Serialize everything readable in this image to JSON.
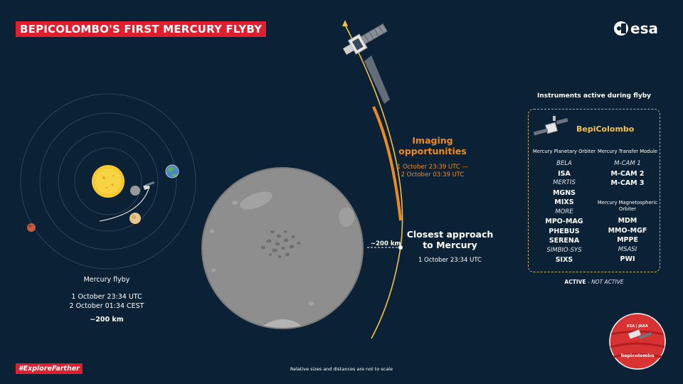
{
  "title": "BEPICOLOMBO'S FIRST MERCURY FLYBY",
  "logo": {
    "text": "esa",
    "icon": "esa-logo-icon"
  },
  "orbit_diagram": {
    "caption": "Mercury flyby",
    "time_utc": "1 October 23:34 UTC",
    "time_cest": "2 October 01:34 CEST",
    "distance": "~200 km"
  },
  "imaging": {
    "title_line1": "Imaging",
    "title_line2": "opportunities",
    "time_line1": "1 October 23:39 UTC —",
    "time_line2": "2 October 03:39 UTC"
  },
  "closest_approach": {
    "title_line1": "Closest approach",
    "title_line2": "to Mercury",
    "time": "1 October 23:34 UTC",
    "distance": "~200 km"
  },
  "instruments_panel": {
    "title": "Instruments active during flyby",
    "spacecraft_name": "BepiColombo",
    "mpo": {
      "header": "Mercury Planetary Orbiter",
      "items": [
        {
          "name": "BELA",
          "active": false
        },
        {
          "name": "ISA",
          "active": true
        },
        {
          "name": "MERTIS",
          "active": false
        },
        {
          "name": "MGNS",
          "active": true
        },
        {
          "name": "MIXS",
          "active": true
        },
        {
          "name": "MORE",
          "active": false
        },
        {
          "name": "MPO-MAG",
          "active": true
        },
        {
          "name": "PHEBUS",
          "active": true
        },
        {
          "name": "SERENA",
          "active": true
        },
        {
          "name": "SIMBIO-SYS",
          "active": false
        },
        {
          "name": "SIXS",
          "active": true
        }
      ]
    },
    "mtm": {
      "header": "Mercury Transfer Module",
      "items": [
        {
          "name": "M-CAM 1",
          "active": false
        },
        {
          "name": "M-CAM 2",
          "active": true
        },
        {
          "name": "M-CAM 3",
          "active": true
        }
      ]
    },
    "mmo": {
      "header_line1": "Mercury Magnetospheric",
      "header_line2": "Orbiter",
      "items": [
        {
          "name": "MDM",
          "active": true
        },
        {
          "name": "MMO-MGF",
          "active": true
        },
        {
          "name": "MPPE",
          "active": true
        },
        {
          "name": "MSASI",
          "active": false
        },
        {
          "name": "PWI",
          "active": true
        }
      ]
    },
    "legend": {
      "active": "ACTIVE",
      "separator": "-",
      "inactive": "NOT ACTIVE"
    }
  },
  "hashtag": "#ExploreFarther",
  "footnote": "Relative sizes and distances are not to scale",
  "mission_patch": {
    "top_text": "ESA | JAXA",
    "name": "bepicolombo"
  },
  "colors": {
    "background": "#0b2236",
    "accent_red": "#e01e2d",
    "orange": "#f08a1d",
    "gold": "#f5c242",
    "mercury": "#8e8e8e"
  }
}
